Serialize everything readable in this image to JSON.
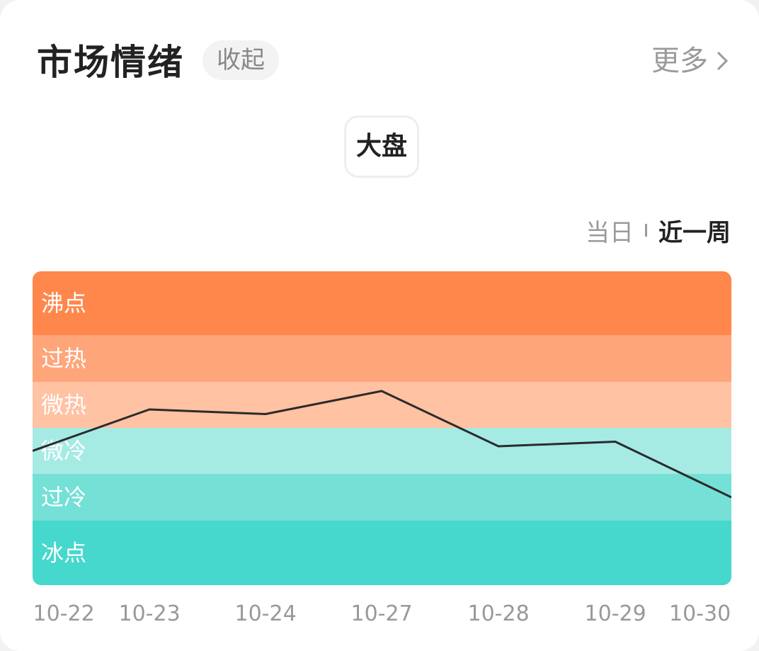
{
  "header": {
    "title": "市场情绪",
    "collapse_label": "收起",
    "more_label": "更多"
  },
  "tabs": [
    {
      "label": "大盘",
      "selected": true
    }
  ],
  "range_toggle": {
    "options": [
      "当日",
      "近一周"
    ],
    "selected": "近一周"
  },
  "colors": {
    "line": "#2b2b2b",
    "accent_hot": "#FF874C",
    "accent_cold": "#46D8CC"
  },
  "chart_data": {
    "type": "line",
    "title": "",
    "xlabel": "",
    "ylabel": "",
    "x": [
      "10-22",
      "10-23",
      "10-24",
      "10-27",
      "10-28",
      "10-29",
      "10-30"
    ],
    "ylim": [
      0,
      6
    ],
    "zones": [
      {
        "label": "冰点",
        "from": 0,
        "to": 1,
        "color": "#46D8CC"
      },
      {
        "label": "过冷",
        "from": 1,
        "to": 2,
        "color": "#74E0D6"
      },
      {
        "label": "微冷",
        "from": 2,
        "to": 3,
        "color": "#A5EBE4"
      },
      {
        "label": "微热",
        "from": 3,
        "to": 4,
        "color": "#FFC2A3"
      },
      {
        "label": "过热",
        "from": 4,
        "to": 5,
        "color": "#FFA57A"
      },
      {
        "label": "沸点",
        "from": 5,
        "to": 6,
        "color": "#FF874C"
      }
    ],
    "series": [
      {
        "values": [
          2.5,
          3.4,
          3.3,
          3.8,
          2.6,
          2.7,
          1.5
        ]
      }
    ],
    "grid": false,
    "legend": "none"
  }
}
